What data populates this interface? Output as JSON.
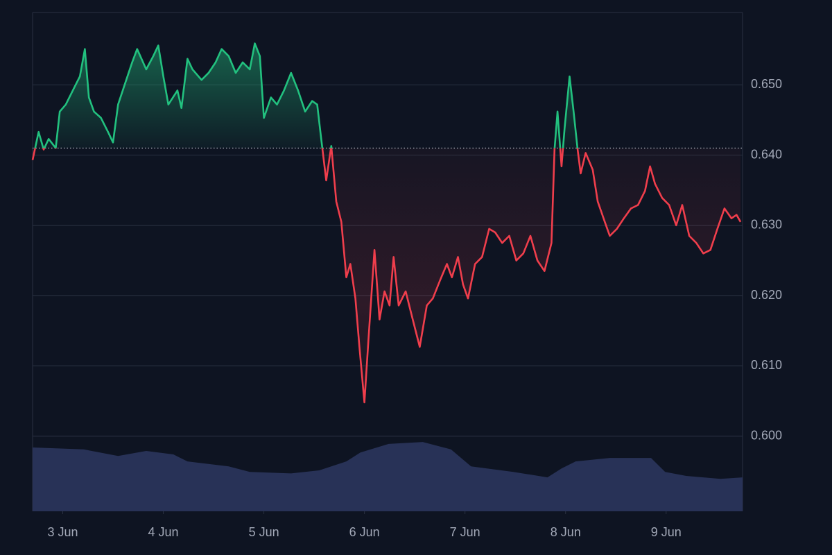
{
  "chart_data": {
    "type": "line",
    "xlim": [
      2.7,
      9.76
    ],
    "ylim": [
      0.5893,
      0.6603
    ],
    "y2lim": [
      0,
      100
    ],
    "xticks": [
      {
        "value": 3,
        "label": "3 Jun"
      },
      {
        "value": 4,
        "label": "4 Jun"
      },
      {
        "value": 5,
        "label": "5 Jun"
      },
      {
        "value": 6,
        "label": "6 Jun"
      },
      {
        "value": 7,
        "label": "7 Jun"
      },
      {
        "value": 8,
        "label": "8 Jun"
      },
      {
        "value": 9,
        "label": "9 Jun"
      }
    ],
    "yticks": [
      {
        "value": 0.6,
        "label": "0.600"
      },
      {
        "value": 0.61,
        "label": "0.610"
      },
      {
        "value": 0.62,
        "label": "0.620"
      },
      {
        "value": 0.63,
        "label": "0.630"
      },
      {
        "value": 0.64,
        "label": "0.640"
      },
      {
        "value": 0.65,
        "label": "0.650"
      }
    ],
    "grid": true,
    "baseline": 0.641,
    "above_color": "#22c17f",
    "below_color": "#f03e4c",
    "x": [
      2.7,
      2.76,
      2.81,
      2.86,
      2.93,
      2.97,
      3.03,
      3.1,
      3.17,
      3.22,
      3.26,
      3.31,
      3.38,
      3.45,
      3.5,
      3.55,
      3.62,
      3.69,
      3.74,
      3.83,
      3.9,
      3.95,
      4.0,
      4.05,
      4.14,
      4.18,
      4.24,
      4.29,
      4.38,
      4.45,
      4.52,
      4.58,
      4.65,
      4.72,
      4.79,
      4.86,
      4.91,
      4.96,
      5.0,
      5.07,
      5.13,
      5.2,
      5.27,
      5.34,
      5.41,
      5.48,
      5.53,
      5.57,
      5.62,
      5.67,
      5.72,
      5.77,
      5.82,
      5.86,
      5.91,
      5.95,
      6.0,
      6.04,
      6.1,
      6.15,
      6.2,
      6.25,
      6.29,
      6.34,
      6.41,
      6.48,
      6.55,
      6.62,
      6.68,
      6.75,
      6.82,
      6.87,
      6.93,
      6.98,
      7.03,
      7.1,
      7.17,
      7.24,
      7.3,
      7.37,
      7.44,
      7.51,
      7.58,
      7.65,
      7.72,
      7.79,
      7.86,
      7.89,
      7.92,
      7.96,
      7.99,
      8.04,
      8.08,
      8.12,
      8.15,
      8.2,
      8.27,
      8.32,
      8.39,
      8.44,
      8.51,
      8.58,
      8.65,
      8.72,
      8.79,
      8.84,
      8.89,
      8.96,
      9.03,
      9.1,
      9.16,
      9.23,
      9.3,
      9.37,
      9.44,
      9.51,
      9.58,
      9.65,
      9.7,
      9.74
    ],
    "series": [
      {
        "values": [
          0.6393,
          0.6433,
          0.6408,
          0.6423,
          0.641,
          0.6462,
          0.6472,
          0.6492,
          0.6512,
          0.6551,
          0.6482,
          0.6462,
          0.6453,
          0.6433,
          0.6418,
          0.6472,
          0.6502,
          0.6532,
          0.6551,
          0.6522,
          0.6541,
          0.6556,
          0.6512,
          0.6472,
          0.6492,
          0.6467,
          0.6537,
          0.6522,
          0.6507,
          0.6517,
          0.6532,
          0.6551,
          0.6541,
          0.6517,
          0.6532,
          0.6522,
          0.6559,
          0.6541,
          0.6453,
          0.6482,
          0.6472,
          0.6492,
          0.6517,
          0.6492,
          0.6462,
          0.6477,
          0.6472,
          0.6423,
          0.6364,
          0.6413,
          0.6334,
          0.6305,
          0.6226,
          0.6245,
          0.6196,
          0.6127,
          0.6048,
          0.6137,
          0.6265,
          0.6166,
          0.6206,
          0.6186,
          0.6255,
          0.6186,
          0.6206,
          0.6166,
          0.6127,
          0.6186,
          0.6196,
          0.6221,
          0.6245,
          0.6226,
          0.6255,
          0.6216,
          0.6196,
          0.6245,
          0.6255,
          0.6295,
          0.629,
          0.6275,
          0.6285,
          0.625,
          0.626,
          0.6285,
          0.625,
          0.6235,
          0.6275,
          0.6408,
          0.6462,
          0.6384,
          0.6438,
          0.6512,
          0.6462,
          0.6408,
          0.6374,
          0.6403,
          0.6379,
          0.6334,
          0.6305,
          0.6285,
          0.6295,
          0.631,
          0.6324,
          0.6329,
          0.6349,
          0.6384,
          0.6359,
          0.6339,
          0.6329,
          0.63,
          0.6329,
          0.6285,
          0.6275,
          0.626,
          0.6265,
          0.6295,
          0.6324,
          0.631,
          0.6315,
          0.6305
        ]
      }
    ],
    "volume": {
      "axis": "y2",
      "color": "#283257",
      "x": [
        2.7,
        3.21,
        3.55,
        3.83,
        4.1,
        4.24,
        4.65,
        4.86,
        5.27,
        5.55,
        5.82,
        5.96,
        6.24,
        6.58,
        6.86,
        7.06,
        7.48,
        7.82,
        7.96,
        8.1,
        8.44,
        8.85,
        8.99,
        9.2,
        9.54,
        9.76
      ],
      "values": [
        12.8,
        12.4,
        11.1,
        12.1,
        11.4,
        10.0,
        9.0,
        7.9,
        7.6,
        8.2,
        10.0,
        11.8,
        13.5,
        13.9,
        12.4,
        9.0,
        7.9,
        6.8,
        8.6,
        10.0,
        10.7,
        10.7,
        7.9,
        7.1,
        6.5,
        6.8
      ]
    }
  }
}
